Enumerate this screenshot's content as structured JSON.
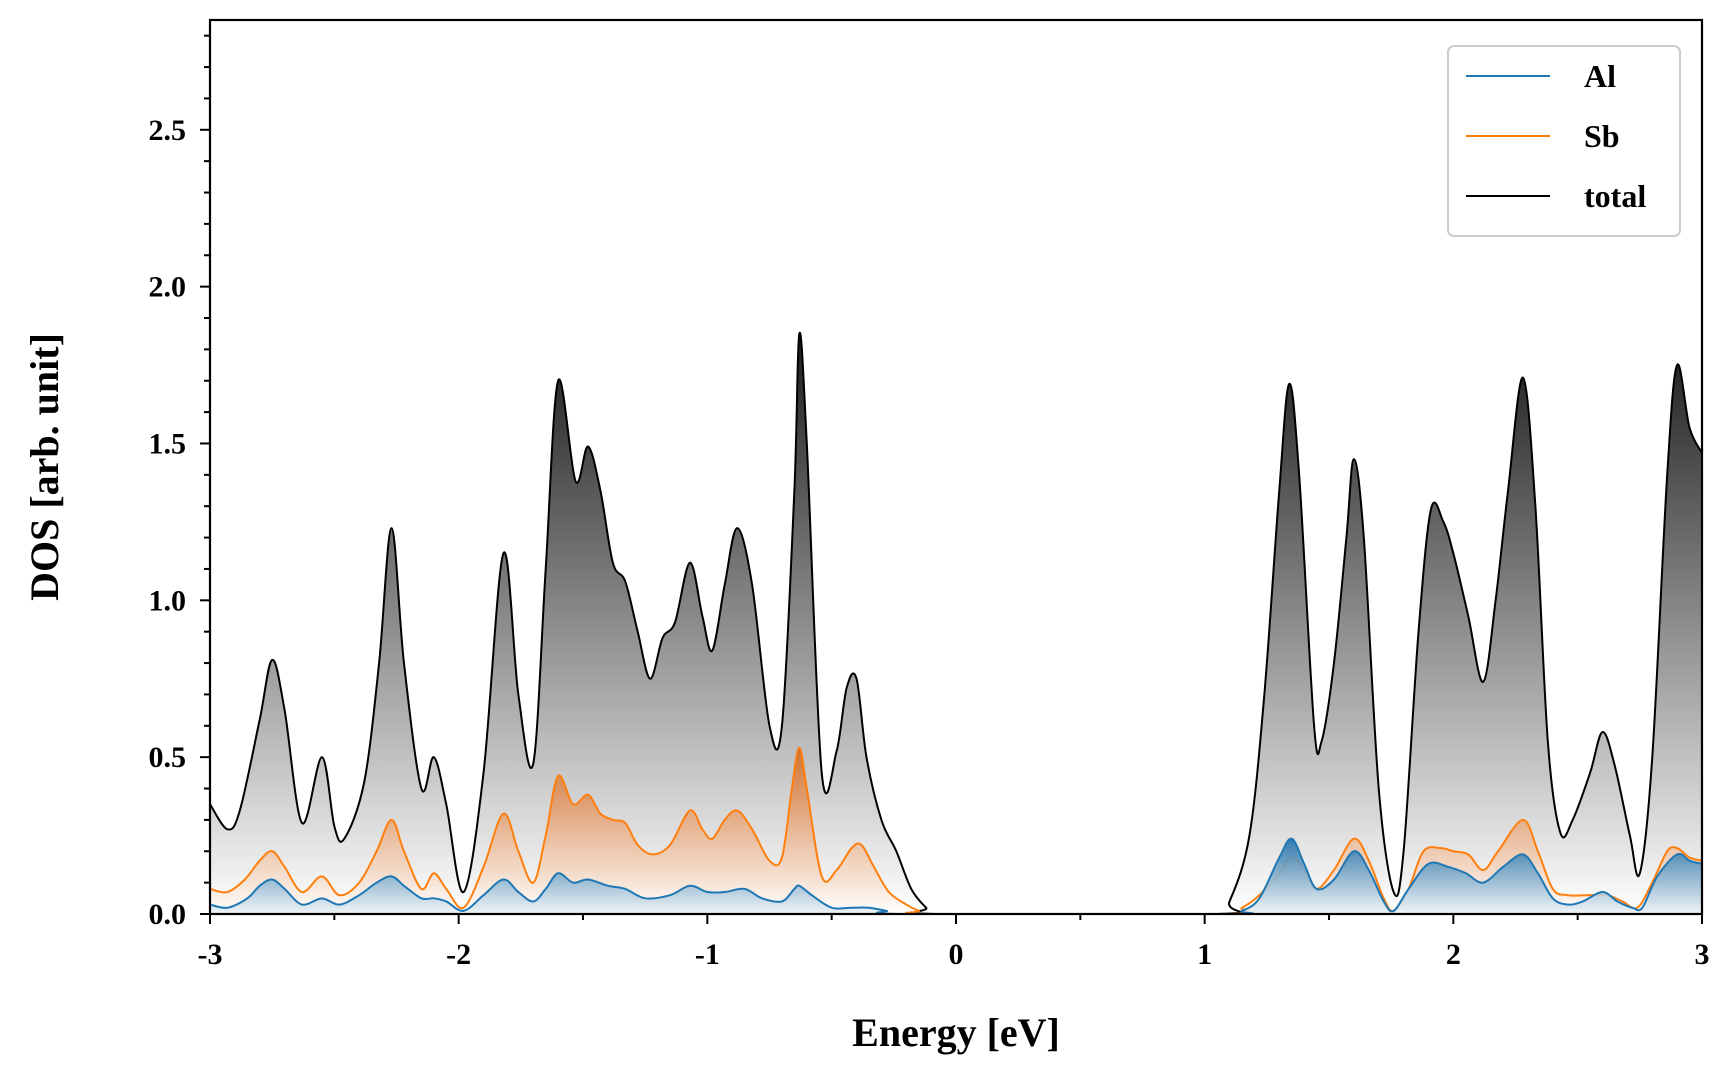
{
  "chart_data": {
    "type": "area",
    "xlabel": "Energy [eV]",
    "ylabel": "DOS [arb. unit]",
    "xlim": [
      -3,
      3
    ],
    "ylim": [
      0,
      2.85
    ],
    "x_ticks": [
      -3,
      -2,
      -1,
      0,
      1,
      2,
      3
    ],
    "x_tick_labels": [
      "-3",
      "-2",
      "-1",
      "0",
      "1",
      "2",
      "3"
    ],
    "y_ticks": [
      0,
      0.5,
      1.0,
      1.5,
      2.0,
      2.5
    ],
    "y_tick_labels": [
      "0.0",
      "0.5",
      "1.0",
      "1.5",
      "2.0",
      "2.5"
    ],
    "grid": false,
    "legend_position": "top-right",
    "colors": {
      "Al": "#1f77b4",
      "Sb": "#ff7f0e",
      "total": "#000000"
    },
    "series": [
      {
        "name": "total",
        "points": [
          [
            -3.0,
            0.35
          ],
          [
            -2.93,
            0.27
          ],
          [
            -2.88,
            0.33
          ],
          [
            -2.8,
            0.62
          ],
          [
            -2.75,
            0.81
          ],
          [
            -2.7,
            0.65
          ],
          [
            -2.63,
            0.29
          ],
          [
            -2.55,
            0.5
          ],
          [
            -2.5,
            0.28
          ],
          [
            -2.46,
            0.24
          ],
          [
            -2.38,
            0.42
          ],
          [
            -2.32,
            0.8
          ],
          [
            -2.27,
            1.23
          ],
          [
            -2.22,
            0.8
          ],
          [
            -2.15,
            0.4
          ],
          [
            -2.1,
            0.5
          ],
          [
            -2.05,
            0.35
          ],
          [
            -1.98,
            0.07
          ],
          [
            -1.9,
            0.45
          ],
          [
            -1.82,
            1.15
          ],
          [
            -1.76,
            0.7
          ],
          [
            -1.7,
            0.48
          ],
          [
            -1.65,
            1.1
          ],
          [
            -1.6,
            1.7
          ],
          [
            -1.53,
            1.38
          ],
          [
            -1.48,
            1.49
          ],
          [
            -1.43,
            1.35
          ],
          [
            -1.38,
            1.12
          ],
          [
            -1.33,
            1.06
          ],
          [
            -1.28,
            0.9
          ],
          [
            -1.23,
            0.75
          ],
          [
            -1.18,
            0.88
          ],
          [
            -1.13,
            0.93
          ],
          [
            -1.07,
            1.12
          ],
          [
            -1.02,
            0.95
          ],
          [
            -0.98,
            0.84
          ],
          [
            -0.93,
            1.05
          ],
          [
            -0.88,
            1.23
          ],
          [
            -0.82,
            1.05
          ],
          [
            -0.75,
            0.6
          ],
          [
            -0.7,
            0.6
          ],
          [
            -0.65,
            1.35
          ],
          [
            -0.63,
            1.85
          ],
          [
            -0.6,
            1.5
          ],
          [
            -0.54,
            0.45
          ],
          [
            -0.48,
            0.52
          ],
          [
            -0.44,
            0.72
          ],
          [
            -0.4,
            0.75
          ],
          [
            -0.36,
            0.5
          ],
          [
            -0.3,
            0.3
          ],
          [
            -0.24,
            0.2
          ],
          [
            -0.18,
            0.08
          ],
          [
            -0.12,
            0.02
          ],
          [
            -0.08,
            0.0
          ],
          [
            1.05,
            0.0
          ],
          [
            1.1,
            0.04
          ],
          [
            1.18,
            0.25
          ],
          [
            1.24,
            0.7
          ],
          [
            1.3,
            1.35
          ],
          [
            1.34,
            1.69
          ],
          [
            1.38,
            1.4
          ],
          [
            1.44,
            0.6
          ],
          [
            1.47,
            0.55
          ],
          [
            1.52,
            0.8
          ],
          [
            1.57,
            1.2
          ],
          [
            1.6,
            1.45
          ],
          [
            1.64,
            1.2
          ],
          [
            1.7,
            0.4
          ],
          [
            1.76,
            0.07
          ],
          [
            1.8,
            0.2
          ],
          [
            1.86,
            0.9
          ],
          [
            1.91,
            1.29
          ],
          [
            1.96,
            1.25
          ],
          [
            2.0,
            1.15
          ],
          [
            2.06,
            0.95
          ],
          [
            2.12,
            0.74
          ],
          [
            2.17,
            1.0
          ],
          [
            2.22,
            1.35
          ],
          [
            2.28,
            1.71
          ],
          [
            2.33,
            1.3
          ],
          [
            2.38,
            0.55
          ],
          [
            2.43,
            0.26
          ],
          [
            2.48,
            0.3
          ],
          [
            2.55,
            0.45
          ],
          [
            2.6,
            0.58
          ],
          [
            2.65,
            0.47
          ],
          [
            2.71,
            0.25
          ],
          [
            2.75,
            0.13
          ],
          [
            2.8,
            0.5
          ],
          [
            2.86,
            1.4
          ],
          [
            2.9,
            1.75
          ],
          [
            2.95,
            1.55
          ],
          [
            3.0,
            1.47
          ]
        ]
      },
      {
        "name": "Sb",
        "points": [
          [
            -3.0,
            0.08
          ],
          [
            -2.93,
            0.07
          ],
          [
            -2.86,
            0.11
          ],
          [
            -2.8,
            0.17
          ],
          [
            -2.75,
            0.2
          ],
          [
            -2.7,
            0.15
          ],
          [
            -2.63,
            0.07
          ],
          [
            -2.55,
            0.12
          ],
          [
            -2.48,
            0.06
          ],
          [
            -2.4,
            0.1
          ],
          [
            -2.33,
            0.2
          ],
          [
            -2.27,
            0.3
          ],
          [
            -2.22,
            0.2
          ],
          [
            -2.15,
            0.08
          ],
          [
            -2.1,
            0.13
          ],
          [
            -2.05,
            0.08
          ],
          [
            -1.98,
            0.02
          ],
          [
            -1.9,
            0.15
          ],
          [
            -1.82,
            0.32
          ],
          [
            -1.76,
            0.2
          ],
          [
            -1.7,
            0.1
          ],
          [
            -1.65,
            0.25
          ],
          [
            -1.6,
            0.44
          ],
          [
            -1.54,
            0.35
          ],
          [
            -1.48,
            0.38
          ],
          [
            -1.43,
            0.32
          ],
          [
            -1.38,
            0.3
          ],
          [
            -1.33,
            0.29
          ],
          [
            -1.28,
            0.22
          ],
          [
            -1.22,
            0.19
          ],
          [
            -1.15,
            0.22
          ],
          [
            -1.07,
            0.33
          ],
          [
            -1.02,
            0.27
          ],
          [
            -0.98,
            0.24
          ],
          [
            -0.93,
            0.3
          ],
          [
            -0.88,
            0.33
          ],
          [
            -0.82,
            0.27
          ],
          [
            -0.75,
            0.17
          ],
          [
            -0.7,
            0.18
          ],
          [
            -0.66,
            0.4
          ],
          [
            -0.63,
            0.53
          ],
          [
            -0.6,
            0.4
          ],
          [
            -0.54,
            0.12
          ],
          [
            -0.48,
            0.14
          ],
          [
            -0.42,
            0.21
          ],
          [
            -0.38,
            0.22
          ],
          [
            -0.33,
            0.15
          ],
          [
            -0.27,
            0.07
          ],
          [
            -0.2,
            0.03
          ],
          [
            -0.15,
            0.01
          ],
          [
            -0.1,
            0.0
          ],
          [
            1.08,
            0.0
          ],
          [
            1.15,
            0.02
          ],
          [
            1.22,
            0.06
          ],
          [
            1.3,
            0.13
          ],
          [
            1.35,
            0.18
          ],
          [
            1.4,
            0.14
          ],
          [
            1.45,
            0.08
          ],
          [
            1.52,
            0.14
          ],
          [
            1.6,
            0.24
          ],
          [
            1.66,
            0.17
          ],
          [
            1.72,
            0.05
          ],
          [
            1.76,
            0.01
          ],
          [
            1.82,
            0.08
          ],
          [
            1.88,
            0.2
          ],
          [
            1.95,
            0.21
          ],
          [
            2.0,
            0.2
          ],
          [
            2.06,
            0.19
          ],
          [
            2.12,
            0.14
          ],
          [
            2.18,
            0.2
          ],
          [
            2.28,
            0.3
          ],
          [
            2.34,
            0.2
          ],
          [
            2.4,
            0.08
          ],
          [
            2.46,
            0.06
          ],
          [
            2.55,
            0.06
          ],
          [
            2.62,
            0.06
          ],
          [
            2.68,
            0.04
          ],
          [
            2.74,
            0.02
          ],
          [
            2.8,
            0.1
          ],
          [
            2.86,
            0.2
          ],
          [
            2.9,
            0.21
          ],
          [
            2.95,
            0.18
          ],
          [
            3.0,
            0.17
          ]
        ]
      },
      {
        "name": "Al",
        "points": [
          [
            -3.0,
            0.03
          ],
          [
            -2.93,
            0.02
          ],
          [
            -2.85,
            0.05
          ],
          [
            -2.8,
            0.09
          ],
          [
            -2.75,
            0.11
          ],
          [
            -2.7,
            0.08
          ],
          [
            -2.63,
            0.03
          ],
          [
            -2.55,
            0.05
          ],
          [
            -2.48,
            0.03
          ],
          [
            -2.4,
            0.06
          ],
          [
            -2.33,
            0.1
          ],
          [
            -2.27,
            0.12
          ],
          [
            -2.22,
            0.09
          ],
          [
            -2.15,
            0.05
          ],
          [
            -2.1,
            0.05
          ],
          [
            -2.05,
            0.04
          ],
          [
            -1.98,
            0.01
          ],
          [
            -1.9,
            0.06
          ],
          [
            -1.82,
            0.11
          ],
          [
            -1.76,
            0.07
          ],
          [
            -1.7,
            0.04
          ],
          [
            -1.65,
            0.08
          ],
          [
            -1.6,
            0.13
          ],
          [
            -1.54,
            0.1
          ],
          [
            -1.48,
            0.11
          ],
          [
            -1.4,
            0.09
          ],
          [
            -1.33,
            0.08
          ],
          [
            -1.25,
            0.05
          ],
          [
            -1.15,
            0.06
          ],
          [
            -1.07,
            0.09
          ],
          [
            -1.0,
            0.07
          ],
          [
            -0.93,
            0.07
          ],
          [
            -0.85,
            0.08
          ],
          [
            -0.78,
            0.05
          ],
          [
            -0.7,
            0.04
          ],
          [
            -0.65,
            0.08
          ],
          [
            -0.63,
            0.09
          ],
          [
            -0.58,
            0.06
          ],
          [
            -0.5,
            0.02
          ],
          [
            -0.42,
            0.02
          ],
          [
            -0.35,
            0.02
          ],
          [
            -0.28,
            0.01
          ],
          [
            -0.2,
            0.0
          ],
          [
            1.08,
            0.0
          ],
          [
            1.15,
            0.01
          ],
          [
            1.22,
            0.05
          ],
          [
            1.3,
            0.18
          ],
          [
            1.35,
            0.24
          ],
          [
            1.4,
            0.16
          ],
          [
            1.45,
            0.08
          ],
          [
            1.52,
            0.11
          ],
          [
            1.6,
            0.2
          ],
          [
            1.66,
            0.14
          ],
          [
            1.72,
            0.04
          ],
          [
            1.76,
            0.01
          ],
          [
            1.82,
            0.08
          ],
          [
            1.9,
            0.16
          ],
          [
            1.98,
            0.15
          ],
          [
            2.05,
            0.13
          ],
          [
            2.12,
            0.1
          ],
          [
            2.2,
            0.15
          ],
          [
            2.28,
            0.19
          ],
          [
            2.34,
            0.13
          ],
          [
            2.4,
            0.05
          ],
          [
            2.46,
            0.03
          ],
          [
            2.52,
            0.04
          ],
          [
            2.6,
            0.07
          ],
          [
            2.66,
            0.04
          ],
          [
            2.72,
            0.02
          ],
          [
            2.76,
            0.02
          ],
          [
            2.82,
            0.12
          ],
          [
            2.9,
            0.19
          ],
          [
            2.95,
            0.17
          ],
          [
            3.0,
            0.16
          ]
        ]
      }
    ]
  }
}
